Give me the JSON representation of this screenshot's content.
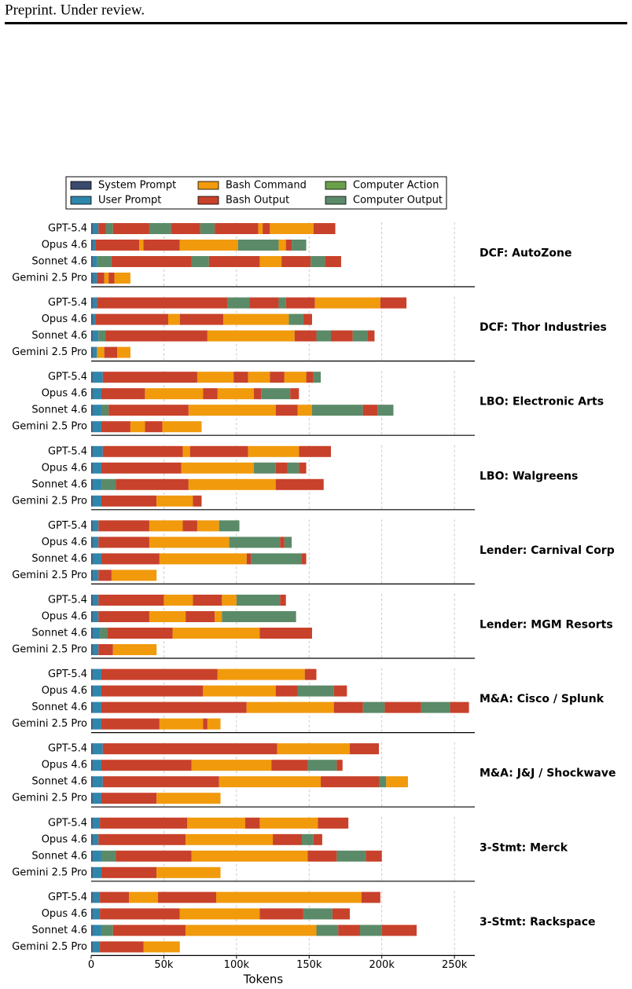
{
  "header": {
    "text": "Preprint. Under review."
  },
  "chart_data": {
    "type": "bar",
    "xlabel": "Tokens",
    "xlim": [
      0,
      264000
    ],
    "xticks": [
      0,
      {
        "value": 50000,
        "label": "50k"
      },
      {
        "value": 100000,
        "label": "100k"
      },
      {
        "value": 150000,
        "label": "150k"
      },
      {
        "value": 200000,
        "label": "200k"
      },
      {
        "value": 250000,
        "label": "250k"
      }
    ],
    "grid": true,
    "series": [
      {
        "name": "System Prompt",
        "color": "#3b4a6e"
      },
      {
        "name": "User Prompt",
        "color": "#2e86ab"
      },
      {
        "name": "Bash Command",
        "color": "#f09a0c"
      },
      {
        "name": "Bash Output",
        "color": "#c8412a"
      },
      {
        "name": "Computer Action",
        "color": "#6aa04a"
      },
      {
        "name": "Computer Output",
        "color": "#5b8a68"
      }
    ],
    "groups": [
      {
        "label": "DCF: AutoZone",
        "bars": [
          {
            "model": "GPT-5.4",
            "kinds": [
              0,
              1,
              3,
              5,
              3,
              5,
              3,
              5,
              3,
              2,
              3,
              2,
              3
            ],
            "values": [
              1000,
              4000,
              5000,
              5000,
              25000,
              15000,
              20000,
              10000,
              30000,
              3000,
              5000,
              30000,
              15000
            ]
          },
          {
            "model": "Opus 4.6",
            "kinds": [
              0,
              1,
              3,
              2,
              3,
              2,
              5,
              2,
              3,
              5
            ],
            "values": [
              1000,
              2000,
              30000,
              3000,
              25000,
              40000,
              28000,
              5000,
              4000,
              10000
            ]
          },
          {
            "model": "Sonnet 4.6",
            "kinds": [
              0,
              1,
              5,
              3,
              5,
              3,
              2,
              3,
              5,
              3
            ],
            "values": [
              1000,
              3000,
              10000,
              55000,
              12000,
              35000,
              15000,
              20000,
              10000,
              11000
            ]
          },
          {
            "model": "Gemini 2.5 Pro",
            "kinds": [
              0,
              1,
              3,
              2,
              3,
              2
            ],
            "values": [
              1000,
              3000,
              5000,
              3000,
              4000,
              11000
            ]
          }
        ]
      },
      {
        "label": "DCF: Thor Industries",
        "bars": [
          {
            "model": "GPT-5.4",
            "kinds": [
              0,
              1,
              3,
              5,
              3,
              5,
              3,
              2,
              3
            ],
            "values": [
              1000,
              3000,
              90000,
              15000,
              20000,
              5000,
              20000,
              45000,
              18000
            ]
          },
          {
            "model": "Opus 4.6",
            "kinds": [
              0,
              1,
              3,
              2,
              3,
              2,
              5,
              3
            ],
            "values": [
              1000,
              2000,
              50000,
              8000,
              30000,
              45000,
              10000,
              6000
            ]
          },
          {
            "model": "Sonnet 4.6",
            "kinds": [
              0,
              1,
              5,
              3,
              2,
              3,
              5,
              3,
              5,
              3
            ],
            "values": [
              1000,
              4000,
              5000,
              70000,
              60000,
              15000,
              10000,
              15000,
              10000,
              5000
            ]
          },
          {
            "model": "Gemini 2.5 Pro",
            "kinds": [
              0,
              1,
              2,
              3,
              2
            ],
            "values": [
              1000,
              3000,
              5000,
              9000,
              9000
            ]
          }
        ]
      },
      {
        "label": "LBO: Electronic Arts",
        "bars": [
          {
            "model": "GPT-5.4",
            "kinds": [
              0,
              1,
              3,
              2,
              3,
              2,
              3,
              2,
              3,
              5
            ],
            "values": [
              1000,
              7000,
              65000,
              25000,
              10000,
              15000,
              10000,
              15000,
              5000,
              5000
            ]
          },
          {
            "model": "Opus 4.6",
            "kinds": [
              0,
              1,
              3,
              2,
              3,
              2,
              3,
              5,
              3
            ],
            "values": [
              1000,
              6000,
              30000,
              40000,
              10000,
              25000,
              5000,
              20000,
              6000
            ]
          },
          {
            "model": "Sonnet 4.6",
            "kinds": [
              0,
              1,
              5,
              3,
              2,
              3,
              2,
              5,
              3,
              5
            ],
            "values": [
              1000,
              6000,
              5000,
              55000,
              60000,
              15000,
              10000,
              35000,
              10000,
              11000
            ]
          },
          {
            "model": "Gemini 2.5 Pro",
            "kinds": [
              0,
              1,
              3,
              2,
              3,
              2
            ],
            "values": [
              1000,
              6000,
              20000,
              10000,
              12000,
              27000
            ]
          }
        ]
      },
      {
        "label": "LBO: Walgreens",
        "bars": [
          {
            "model": "GPT-5.4",
            "kinds": [
              0,
              1,
              3,
              2,
              3,
              2,
              3
            ],
            "values": [
              1000,
              7000,
              55000,
              5000,
              40000,
              35000,
              22000
            ]
          },
          {
            "model": "Opus 4.6",
            "kinds": [
              0,
              1,
              3,
              2,
              5,
              3,
              5,
              3
            ],
            "values": [
              1000,
              6000,
              55000,
              50000,
              15000,
              8000,
              8000,
              5000
            ]
          },
          {
            "model": "Sonnet 4.6",
            "kinds": [
              0,
              1,
              5,
              3,
              2,
              3
            ],
            "values": [
              1000,
              6000,
              10000,
              50000,
              60000,
              33000
            ]
          },
          {
            "model": "Gemini 2.5 Pro",
            "kinds": [
              0,
              1,
              3,
              2,
              3
            ],
            "values": [
              1000,
              6000,
              38000,
              25000,
              6000
            ]
          }
        ]
      },
      {
        "label": "Lender: Carnival Corp",
        "bars": [
          {
            "model": "GPT-5.4",
            "kinds": [
              0,
              1,
              3,
              2,
              3,
              2,
              5
            ],
            "values": [
              1000,
              4000,
              35000,
              23000,
              10000,
              15000,
              14000
            ]
          },
          {
            "model": "Opus 4.6",
            "kinds": [
              0,
              1,
              3,
              2,
              5,
              3,
              5
            ],
            "values": [
              1000,
              4000,
              35000,
              55000,
              35000,
              3000,
              5000
            ]
          },
          {
            "model": "Sonnet 4.6",
            "kinds": [
              0,
              1,
              3,
              2,
              3,
              5,
              3
            ],
            "values": [
              1000,
              6000,
              40000,
              60000,
              3000,
              35000,
              3000
            ]
          },
          {
            "model": "Gemini 2.5 Pro",
            "kinds": [
              0,
              1,
              3,
              2
            ],
            "values": [
              1000,
              4000,
              9000,
              31000
            ]
          }
        ]
      },
      {
        "label": "Lender: MGM Resorts",
        "bars": [
          {
            "model": "GPT-5.4",
            "kinds": [
              0,
              1,
              3,
              2,
              3,
              2,
              5,
              3
            ],
            "values": [
              1000,
              4000,
              45000,
              20000,
              20000,
              10000,
              30000,
              4000
            ]
          },
          {
            "model": "Opus 4.6",
            "kinds": [
              0,
              1,
              3,
              2,
              3,
              2,
              5
            ],
            "values": [
              1000,
              4000,
              35000,
              25000,
              20000,
              5000,
              51000
            ]
          },
          {
            "model": "Sonnet 4.6",
            "kinds": [
              0,
              1,
              5,
              3,
              2,
              3
            ],
            "values": [
              1000,
              5000,
              5000,
              45000,
              60000,
              36000
            ]
          },
          {
            "model": "Gemini 2.5 Pro",
            "kinds": [
              0,
              1,
              3,
              2
            ],
            "values": [
              1000,
              4000,
              10000,
              30000
            ]
          }
        ]
      },
      {
        "label": "M&A: Cisco / Splunk",
        "bars": [
          {
            "model": "GPT-5.4",
            "kinds": [
              0,
              1,
              3,
              2,
              3
            ],
            "values": [
              1000,
              6000,
              80000,
              60000,
              8000
            ]
          },
          {
            "model": "Opus 4.6",
            "kinds": [
              0,
              1,
              3,
              2,
              3,
              5,
              3
            ],
            "values": [
              1000,
              6000,
              70000,
              50000,
              15000,
              25000,
              9000
            ]
          },
          {
            "model": "Sonnet 4.6",
            "kinds": [
              0,
              1,
              3,
              2,
              3,
              5,
              3,
              5,
              3
            ],
            "values": [
              1000,
              6000,
              100000,
              60000,
              20000,
              15000,
              25000,
              20000,
              13000
            ]
          },
          {
            "model": "Gemini 2.5 Pro",
            "kinds": [
              0,
              1,
              3,
              2,
              3,
              2
            ],
            "values": [
              1000,
              6000,
              40000,
              30000,
              3000,
              9000
            ]
          }
        ]
      },
      {
        "label": "M&A: J&J / Shockwave",
        "bars": [
          {
            "model": "GPT-5.4",
            "kinds": [
              0,
              1,
              3,
              2,
              3
            ],
            "values": [
              1000,
              7000,
              120000,
              50000,
              20000
            ]
          },
          {
            "model": "Opus 4.6",
            "kinds": [
              0,
              1,
              3,
              2,
              3,
              5,
              3
            ],
            "values": [
              1000,
              6000,
              62000,
              55000,
              25000,
              20000,
              4000
            ]
          },
          {
            "model": "Sonnet 4.6",
            "kinds": [
              0,
              1,
              3,
              2,
              3,
              5,
              2
            ],
            "values": [
              1000,
              7000,
              80000,
              70000,
              40000,
              5000,
              15000
            ]
          },
          {
            "model": "Gemini 2.5 Pro",
            "kinds": [
              0,
              1,
              3,
              2
            ],
            "values": [
              1000,
              6000,
              38000,
              44000
            ]
          }
        ]
      },
      {
        "label": "3-Stmt: Merck",
        "bars": [
          {
            "model": "GPT-5.4",
            "kinds": [
              0,
              1,
              3,
              2,
              3,
              2,
              3
            ],
            "values": [
              1000,
              5000,
              60000,
              40000,
              10000,
              40000,
              21000
            ]
          },
          {
            "model": "Opus 4.6",
            "kinds": [
              0,
              1,
              3,
              2,
              3,
              5,
              3
            ],
            "values": [
              1000,
              4000,
              60000,
              60000,
              20000,
              8000,
              6000
            ]
          },
          {
            "model": "Sonnet 4.6",
            "kinds": [
              0,
              1,
              5,
              3,
              2,
              3,
              5,
              3
            ],
            "values": [
              1000,
              6000,
              10000,
              52000,
              80000,
              20000,
              20000,
              11000
            ]
          },
          {
            "model": "Gemini 2.5 Pro",
            "kinds": [
              0,
              1,
              3,
              2
            ],
            "values": [
              1000,
              6000,
              38000,
              44000
            ]
          }
        ]
      },
      {
        "label": "3-Stmt: Rackspace",
        "bars": [
          {
            "model": "GPT-5.4",
            "kinds": [
              0,
              1,
              3,
              2,
              3,
              2,
              3
            ],
            "values": [
              1000,
              5000,
              20000,
              20000,
              40000,
              100000,
              13000
            ]
          },
          {
            "model": "Opus 4.6",
            "kinds": [
              0,
              1,
              3,
              2,
              3,
              5,
              3
            ],
            "values": [
              1000,
              5000,
              55000,
              55000,
              30000,
              20000,
              12000
            ]
          },
          {
            "model": "Sonnet 4.6",
            "kinds": [
              0,
              1,
              5,
              3,
              2,
              5,
              3,
              5,
              3
            ],
            "values": [
              1000,
              6000,
              8000,
              50000,
              90000,
              15000,
              15000,
              15000,
              24000
            ]
          },
          {
            "model": "Gemini 2.5 Pro",
            "kinds": [
              0,
              1,
              3,
              2
            ],
            "values": [
              1000,
              5000,
              30000,
              25000
            ]
          }
        ]
      }
    ]
  }
}
